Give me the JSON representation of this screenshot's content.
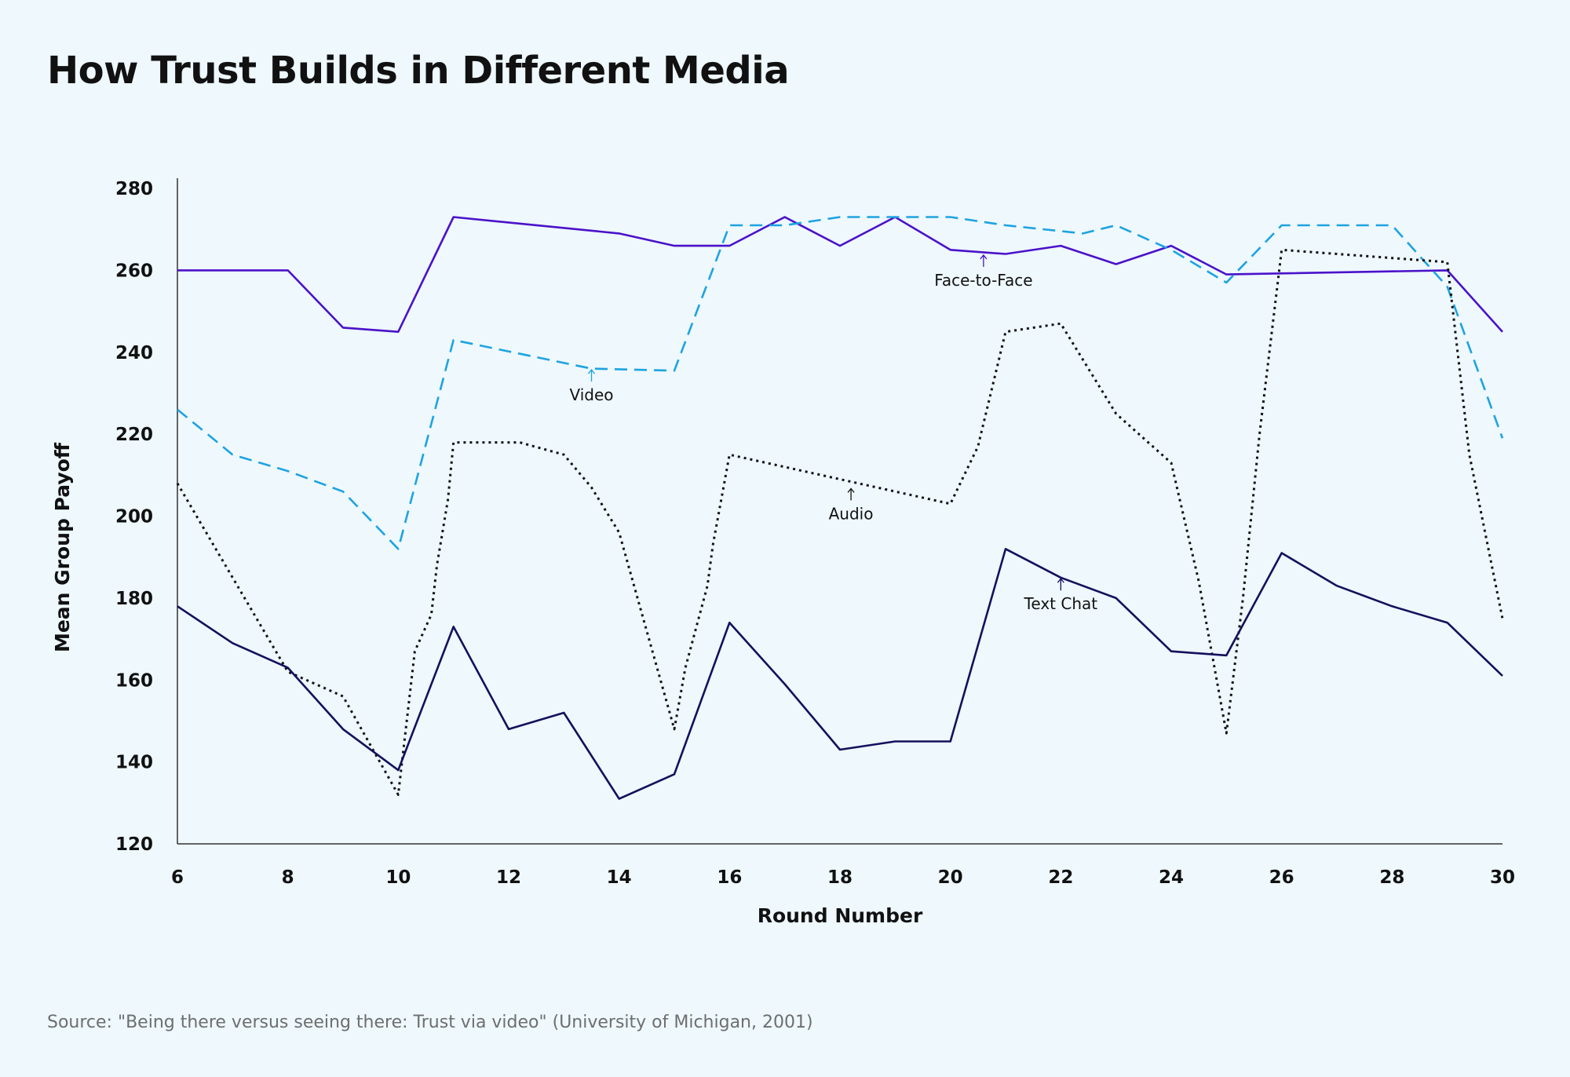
{
  "title": "How Trust Builds in Different Media",
  "source": "Source: \"Being there versus seeing there: Trust via video\" (University of Michigan, 2001)",
  "colors": {
    "background": "#eef8fd",
    "face_to_face": "#4b12c9",
    "video": "#1ea3e0",
    "audio": "#111111",
    "text_chat": "#14105c",
    "axis": "#333333"
  },
  "chart_data": {
    "type": "line",
    "title": "How Trust Builds in Different Media",
    "xlabel": "Round Number",
    "ylabel": "Mean Group Payoff",
    "xlim": [
      6,
      30
    ],
    "ylim": [
      120,
      280
    ],
    "x_ticks": [
      6,
      8,
      10,
      12,
      14,
      16,
      18,
      20,
      22,
      24,
      26,
      28,
      30
    ],
    "y_ticks": [
      120,
      140,
      160,
      180,
      200,
      220,
      240,
      260,
      280
    ],
    "grid": false,
    "legend": "inline annotations",
    "series": [
      {
        "name": "Face-to-Face",
        "style": "solid",
        "color": "#4b12c9",
        "x": [
          6,
          8,
          9,
          10,
          11,
          14,
          15,
          16,
          17,
          18,
          19,
          20,
          21,
          22,
          23,
          24,
          25,
          29,
          30
        ],
        "y": [
          260,
          260,
          246,
          245,
          273,
          269,
          266,
          266,
          273,
          266,
          273,
          265,
          264,
          266,
          261.5,
          266,
          259,
          260,
          245
        ]
      },
      {
        "name": "Video",
        "style": "dashed",
        "color": "#1ea3e0",
        "x": [
          6,
          7,
          8,
          9,
          10,
          11,
          13.5,
          15,
          16,
          17,
          18,
          19,
          20,
          21,
          22.4,
          23,
          24,
          25,
          26,
          28,
          29,
          30
        ],
        "y": [
          226,
          215,
          211,
          206,
          192,
          243,
          236,
          235.5,
          271,
          271,
          273,
          273,
          273,
          271,
          269,
          271,
          265,
          257,
          271,
          271,
          256,
          219
        ]
      },
      {
        "name": "Audio",
        "style": "dotted",
        "color": "#111111",
        "x": [
          6,
          7,
          8,
          9,
          10,
          10.3,
          10.6,
          10.7,
          10.9,
          11,
          12.2,
          13,
          13.5,
          14,
          14.5,
          15,
          15.2,
          15.6,
          15.7,
          16,
          18,
          20,
          20.5,
          21,
          22,
          23,
          24,
          24.5,
          25,
          25.3,
          25.6,
          26,
          29,
          29.4,
          30
        ],
        "y": [
          208,
          185,
          162,
          156,
          132,
          167,
          176,
          188,
          204,
          218,
          218,
          215,
          207,
          196,
          172,
          148,
          163,
          183,
          193,
          215,
          209,
          203,
          217,
          245,
          247,
          225,
          213,
          184,
          147,
          180,
          220,
          265,
          262,
          215,
          175
        ]
      },
      {
        "name": "Text Chat",
        "style": "solid",
        "color": "#14105c",
        "x": [
          6,
          7,
          8,
          9,
          10,
          11,
          12,
          13,
          14,
          15,
          16,
          17,
          18,
          19,
          20,
          21,
          22,
          23,
          24,
          25,
          26,
          27,
          28,
          29,
          30
        ],
        "y": [
          178,
          169,
          163,
          148,
          138,
          173,
          148,
          152,
          131,
          137,
          174,
          159,
          143,
          145,
          145,
          192,
          185,
          180,
          167,
          166,
          191,
          183,
          178,
          174,
          161
        ]
      }
    ],
    "annotations": [
      {
        "label": "Face-to-Face",
        "series": "Face-to-Face",
        "x": 20.6,
        "y": 262
      },
      {
        "label": "Video",
        "series": "Video",
        "x": 13.5,
        "y": 234
      },
      {
        "label": "Audio",
        "series": "Audio",
        "x": 18.2,
        "y": 205
      },
      {
        "label": "Text Chat",
        "series": "Text Chat",
        "x": 22,
        "y": 183
      }
    ]
  }
}
